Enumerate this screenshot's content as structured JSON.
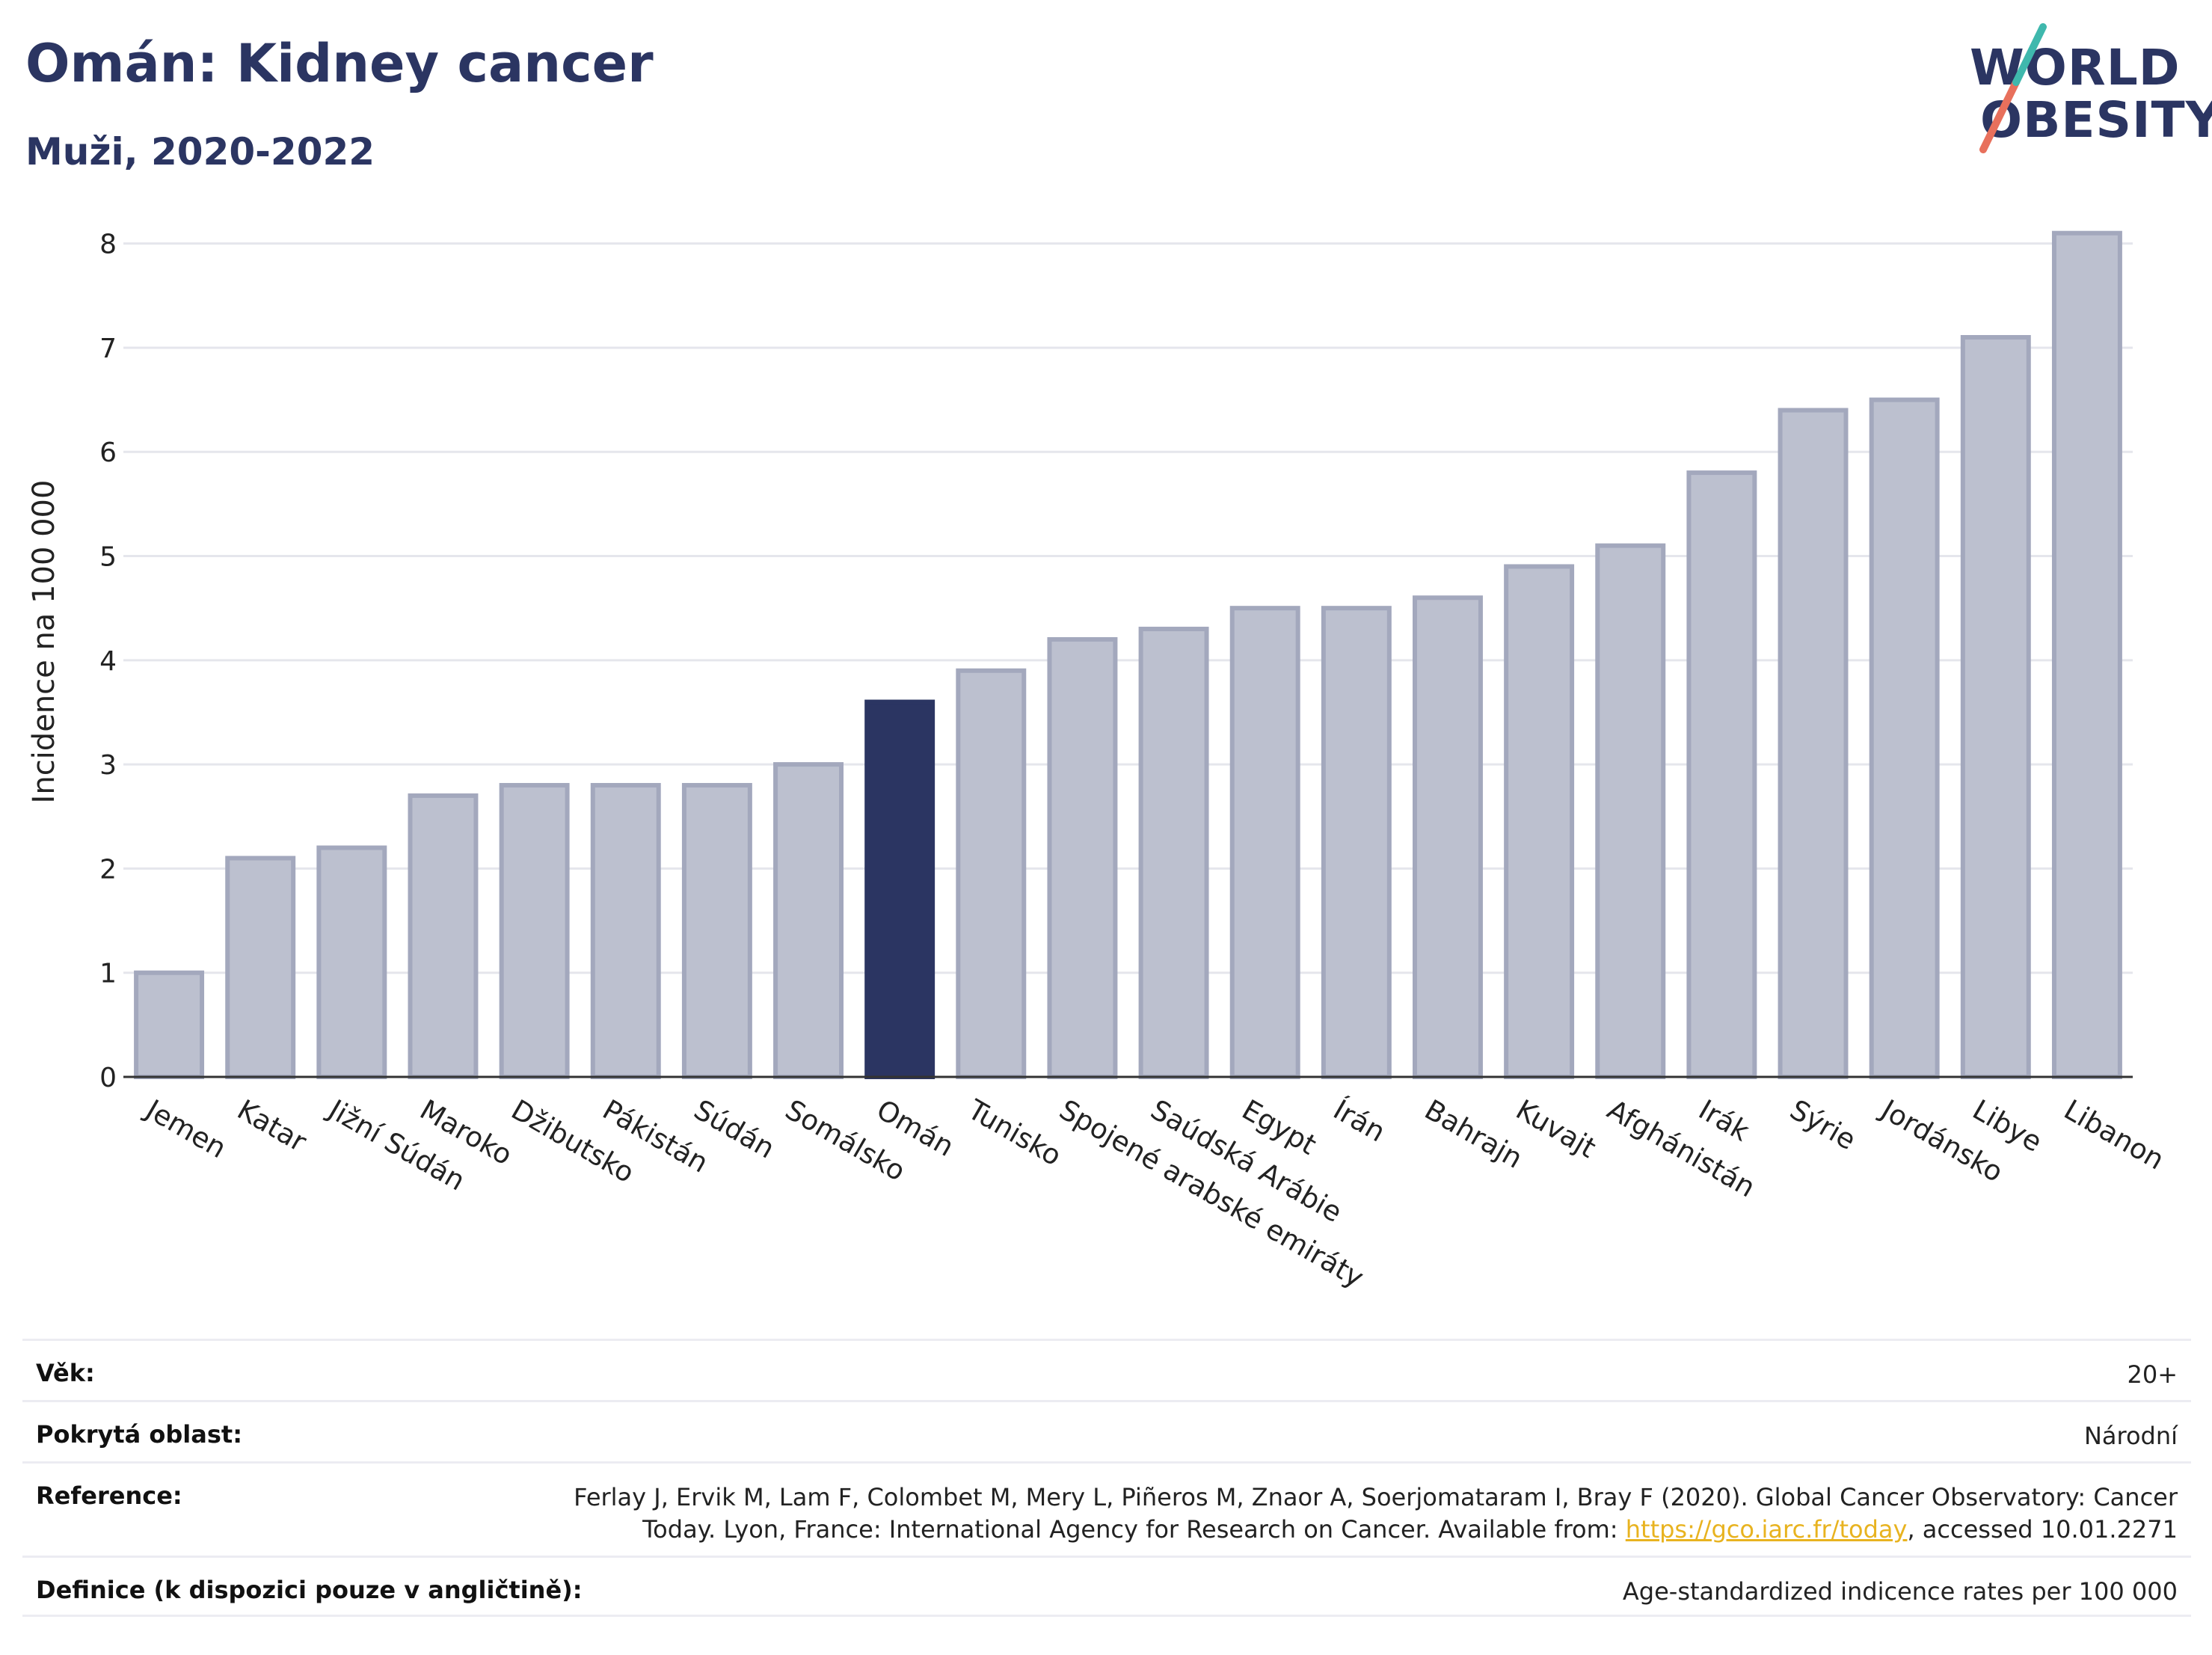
{
  "title": "Omán: Kidney cancer",
  "subtitle": "Muži, 2020-2022",
  "logo": {
    "line1": "WORLD",
    "line2": "OBESITY"
  },
  "colors": {
    "highlight": "#2b3562",
    "bar": "#bcc0cf",
    "bar_border": "#a3a8bd",
    "grid": "#e5e6ec"
  },
  "chart_data": {
    "type": "bar",
    "ylabel": "Incidence na 100 000",
    "ylim": [
      0,
      8.5
    ],
    "yticks": [
      "0",
      "1",
      "2",
      "3",
      "4",
      "5",
      "6",
      "7",
      "8"
    ],
    "grid": true,
    "highlight": "Omán",
    "categories": [
      "Jemen",
      "Katar",
      "Jižní Súdán",
      "Maroko",
      "Džibutsko",
      "Pákistán",
      "Súdán",
      "Somálsko",
      "Omán",
      "Tunisko",
      "Spojené arabské emiráty",
      "Saúdská Arábie",
      "Egypt",
      "Írán",
      "Bahrajn",
      "Kuvajt",
      "Afghánistán",
      "Irák",
      "Sýrie",
      "Jordánsko",
      "Libye",
      "Libanon"
    ],
    "values": [
      1.0,
      2.1,
      2.2,
      2.7,
      2.8,
      2.8,
      2.8,
      3.0,
      3.6,
      3.9,
      4.2,
      4.3,
      4.5,
      4.5,
      4.6,
      4.9,
      5.1,
      5.8,
      6.4,
      6.5,
      7.1,
      8.1
    ]
  },
  "footer": {
    "age_label": "Věk:",
    "age_value": "20+",
    "coverage_label": "Pokrytá oblast:",
    "coverage_value": "Národní",
    "reference_label": "Reference:",
    "reference_line1": "Ferlay J, Ervik M, Lam F, Colombet M, Mery L, Piñeros M, Znaor A, Soerjomataram I, Bray F (2020). Global Cancer Observatory: Cancer",
    "reference_line2_pre": "Today. Lyon, France: International Agency for Research on Cancer. Available from: ",
    "reference_link": "https://gco.iarc.fr/today",
    "reference_line2_post": ", accessed 10.01.2271",
    "definition_label": "Definice (k dispozici pouze v angličtině):",
    "definition_value": "Age-standardized indicence rates per 100 000"
  }
}
